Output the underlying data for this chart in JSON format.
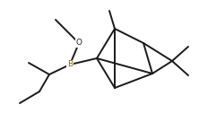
{
  "background": "#ffffff",
  "line_color": "#1a1a1a",
  "line_width": 1.4,
  "figsize": [
    2.22,
    1.36
  ],
  "dpi": 100,
  "B_label": {
    "text": "B",
    "color": "#8B6000"
  },
  "O_label": {
    "text": "O",
    "color": "#1a1a1a"
  }
}
